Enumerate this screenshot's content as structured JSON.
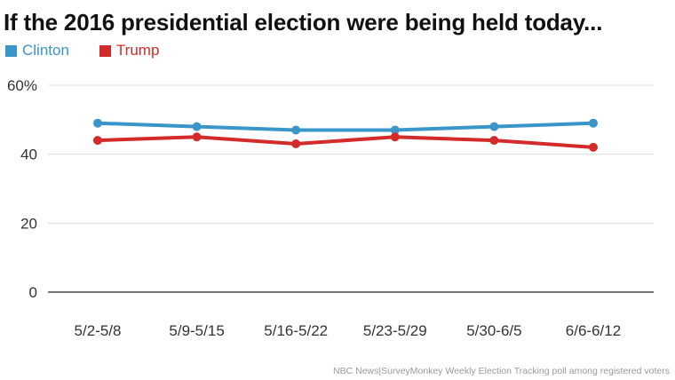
{
  "chart_data": {
    "type": "line",
    "title": "If the 2016 presidential election were being held today...",
    "categories": [
      "5/2-5/8",
      "5/9-5/15",
      "5/16-5/22",
      "5/23-5/29",
      "5/30-6/5",
      "6/6-6/12"
    ],
    "series": [
      {
        "name": "Clinton",
        "color": "#3a95c9",
        "values": [
          49,
          48,
          47,
          47,
          48,
          49
        ]
      },
      {
        "name": "Trump",
        "color": "#d32a2a",
        "values": [
          44,
          45,
          43,
          45,
          44,
          42
        ]
      }
    ],
    "ylim": [
      0,
      60
    ],
    "yticks": [
      0,
      20,
      40,
      60
    ],
    "ytick_labels": [
      "0",
      "20",
      "40",
      "60%"
    ],
    "xlabel": "",
    "ylabel": "",
    "grid": true,
    "legend_position": "top-left"
  },
  "source": "NBC News|SurveyMonkey Weekly Election Tracking poll among registered voters"
}
